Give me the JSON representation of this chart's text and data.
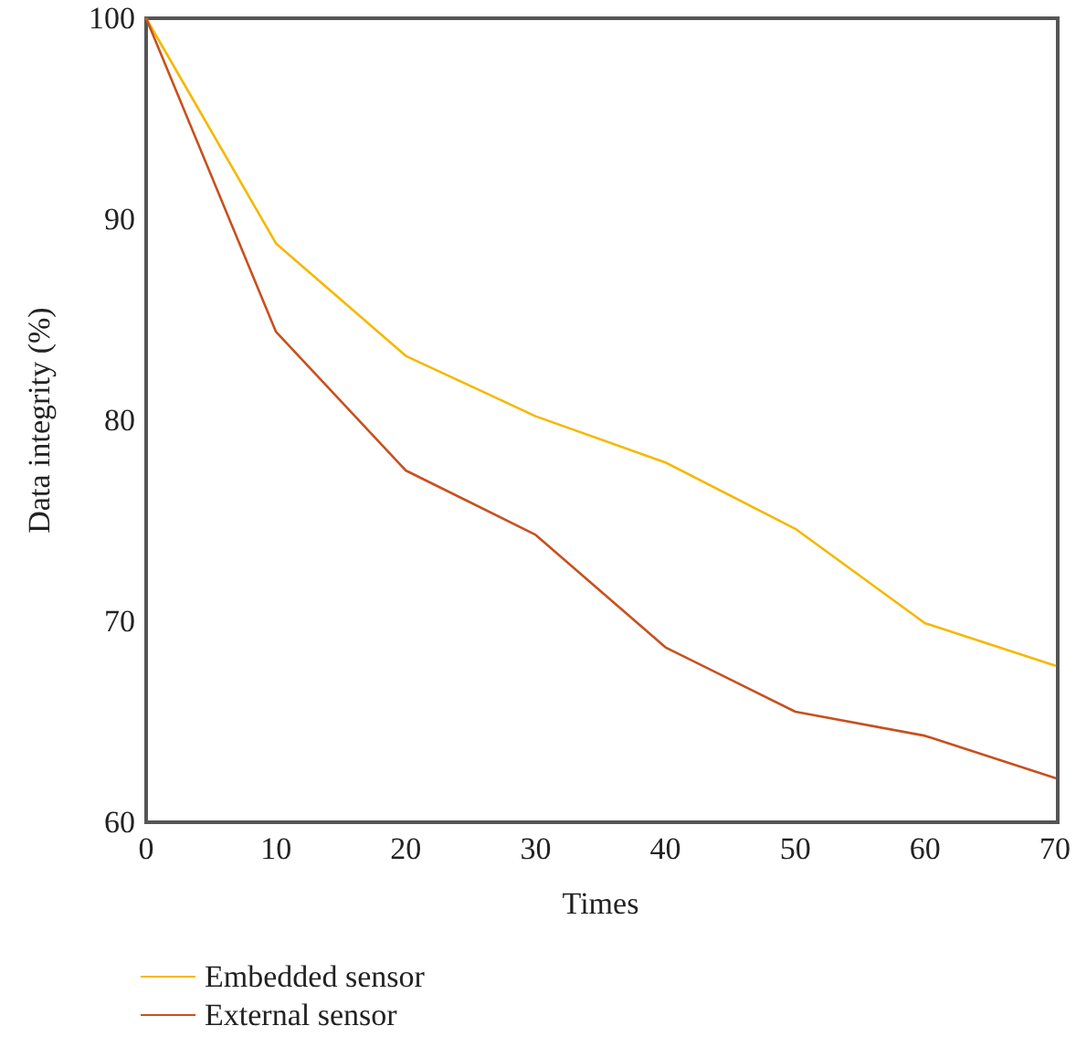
{
  "chart_data": {
    "type": "line",
    "xlabel": "Times",
    "ylabel": "Data integrity (%)",
    "x": [
      0,
      10,
      20,
      30,
      40,
      50,
      60,
      70
    ],
    "series": [
      {
        "name": "Embedded sensor",
        "color": "#f5b800",
        "values": [
          100,
          88.8,
          83.2,
          80.2,
          77.9,
          74.6,
          69.9,
          67.8
        ]
      },
      {
        "name": "External sensor",
        "color": "#c8501e",
        "values": [
          100,
          84.4,
          77.5,
          74.3,
          68.7,
          65.5,
          64.3,
          62.2
        ]
      }
    ],
    "xlim": [
      0,
      70
    ],
    "xticks": [
      0,
      10,
      20,
      30,
      40,
      50,
      60,
      70
    ],
    "ylim": [
      60,
      100
    ],
    "yticks": [
      60,
      70,
      80,
      90,
      100
    ],
    "grid": false,
    "legend": "bottom left",
    "marker": "none",
    "line_style": "solid"
  }
}
